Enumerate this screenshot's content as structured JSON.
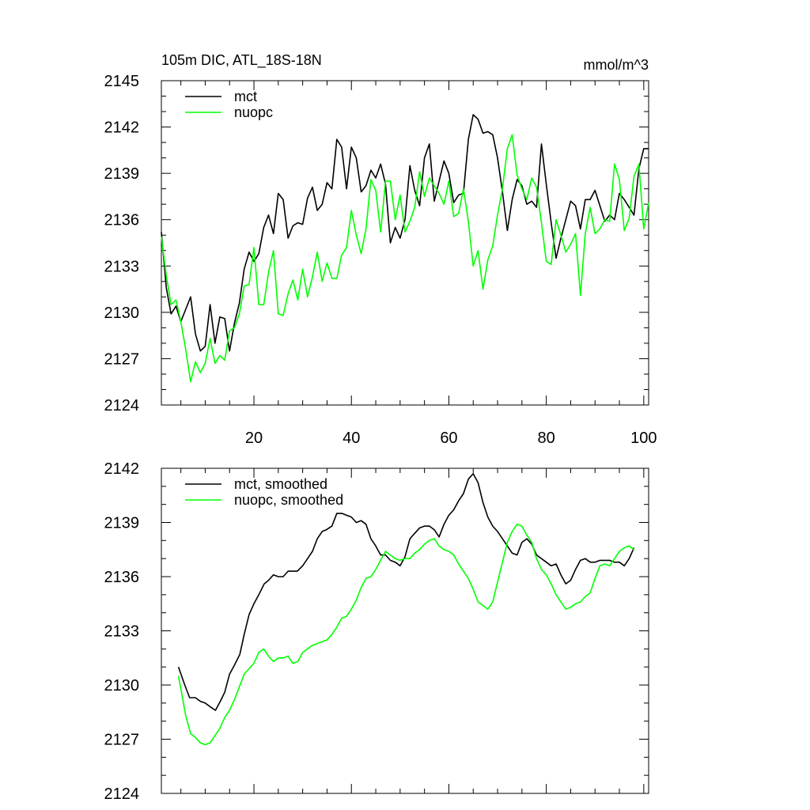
{
  "colors": {
    "mct": "#000000",
    "nuopc": "#00ff00"
  },
  "chart_data": [
    {
      "type": "line",
      "title_left": "105m DIC, ATL_18S-18N",
      "title_right": "mmol/m^3",
      "xlim": [
        1,
        101
      ],
      "ylim": [
        2124,
        2145
      ],
      "yticks": [
        2124,
        2127,
        2130,
        2133,
        2136,
        2139,
        2142,
        2145
      ],
      "xtick_labels": [
        "20",
        "40",
        "60",
        "80",
        "100"
      ],
      "xtick_values": [
        20,
        40,
        60,
        80,
        100
      ],
      "legend": "top-left",
      "series": [
        {
          "name": "mct",
          "color": "#000000",
          "x": [
            1,
            2,
            3,
            4,
            5,
            6,
            7,
            8,
            9,
            10,
            11,
            12,
            13,
            14,
            15,
            16,
            17,
            18,
            19,
            20,
            21,
            22,
            23,
            24,
            25,
            26,
            27,
            28,
            29,
            30,
            31,
            32,
            33,
            34,
            35,
            36,
            37,
            38,
            39,
            40,
            41,
            42,
            43,
            44,
            45,
            46,
            47,
            48,
            49,
            50,
            51,
            52,
            53,
            54,
            55,
            56,
            57,
            58,
            59,
            60,
            61,
            62,
            63,
            64,
            65,
            66,
            67,
            68,
            69,
            70,
            71,
            72,
            73,
            74,
            75,
            76,
            77,
            78,
            79,
            80,
            81,
            82,
            83,
            84,
            85,
            86,
            87,
            88,
            89,
            90,
            91,
            92,
            93,
            94,
            95,
            96,
            97,
            98,
            99,
            100,
            101
          ],
          "values": [
            2135.2,
            2131.6,
            2129.9,
            2130.4,
            2129.4,
            2130.2,
            2131.0,
            2128.6,
            2127.5,
            2127.8,
            2130.5,
            2128.0,
            2129.7,
            2129.6,
            2127.5,
            2129.3,
            2130.6,
            2132.8,
            2133.9,
            2133.3,
            2133.8,
            2135.5,
            2136.3,
            2135.1,
            2137.7,
            2137.3,
            2134.8,
            2135.6,
            2135.8,
            2135.7,
            2137.4,
            2138.1,
            2136.6,
            2137.0,
            2138.4,
            2138.0,
            2141.2,
            2140.7,
            2138.0,
            2140.7,
            2140.0,
            2137.8,
            2138.2,
            2139.2,
            2138.7,
            2139.6,
            2138.3,
            2134.5,
            2135.5,
            2134.8,
            2136.0,
            2139.5,
            2137.9,
            2136.9,
            2140.0,
            2140.9,
            2137.2,
            2138.5,
            2139.8,
            2139.0,
            2137.1,
            2137.6,
            2137.7,
            2141.2,
            2142.8,
            2142.5,
            2141.6,
            2141.7,
            2141.5,
            2140.0,
            2137.8,
            2135.3,
            2137.3,
            2138.6,
            2138.2,
            2137.0,
            2137.2,
            2136.8,
            2140.9,
            2138.3,
            2135.8,
            2133.5,
            2134.8,
            2136.0,
            2137.2,
            2136.9,
            2135.4,
            2137.3,
            2137.3,
            2137.9,
            2136.9,
            2135.9,
            2136.3,
            2136.0,
            2137.7,
            2137.3,
            2136.8,
            2136.3,
            2139.3,
            2140.6,
            2140.6
          ]
        },
        {
          "name": "nuopc",
          "color": "#00ff00",
          "x": [
            1,
            2,
            3,
            4,
            5,
            6,
            7,
            8,
            9,
            10,
            11,
            12,
            13,
            14,
            15,
            16,
            17,
            18,
            19,
            20,
            21,
            22,
            23,
            24,
            25,
            26,
            27,
            28,
            29,
            30,
            31,
            32,
            33,
            34,
            35,
            36,
            37,
            38,
            39,
            40,
            41,
            42,
            43,
            44,
            45,
            46,
            47,
            48,
            49,
            50,
            51,
            52,
            53,
            54,
            55,
            56,
            57,
            58,
            59,
            60,
            61,
            62,
            63,
            64,
            65,
            66,
            67,
            68,
            69,
            70,
            71,
            72,
            73,
            74,
            75,
            76,
            77,
            78,
            79,
            80,
            81,
            82,
            83,
            84,
            85,
            86,
            87,
            88,
            89,
            90,
            91,
            92,
            93,
            94,
            95,
            96,
            97,
            98,
            99,
            100,
            101
          ],
          "values": [
            2134.9,
            2132.4,
            2130.5,
            2130.8,
            2129.4,
            2127.6,
            2125.5,
            2126.8,
            2126.1,
            2126.7,
            2128.3,
            2126.7,
            2127.2,
            2126.9,
            2128.8,
            2129.0,
            2129.9,
            2131.7,
            2131.8,
            2134.2,
            2130.5,
            2130.5,
            2132.6,
            2134.0,
            2129.9,
            2129.8,
            2131.2,
            2132.1,
            2130.8,
            2132.8,
            2131.0,
            2132.3,
            2133.9,
            2132.0,
            2133.2,
            2132.2,
            2132.2,
            2133.7,
            2134.2,
            2136.6,
            2135.0,
            2133.8,
            2135.4,
            2138.6,
            2137.9,
            2135.2,
            2138.5,
            2138.5,
            2136.0,
            2137.6,
            2135.2,
            2135.9,
            2136.8,
            2139.1,
            2137.5,
            2138.7,
            2138.2,
            2137.7,
            2137.0,
            2138.5,
            2136.2,
            2136.4,
            2138.0,
            2135.9,
            2133.0,
            2134.0,
            2131.5,
            2133.4,
            2134.3,
            2136.3,
            2138.0,
            2140.6,
            2141.5,
            2138.9,
            2138.0,
            2137.3,
            2138.7,
            2138.1,
            2135.8,
            2133.3,
            2133.1,
            2136.0,
            2135.0,
            2133.9,
            2134.4,
            2135.1,
            2131.1,
            2135.1,
            2136.8,
            2135.1,
            2135.4,
            2136.0,
            2135.9,
            2139.6,
            2138.6,
            2135.3,
            2136.1,
            2138.8,
            2139.6,
            2135.4,
            2137.1
          ]
        }
      ]
    },
    {
      "type": "line",
      "xlim": [
        1,
        101
      ],
      "ylim": [
        2124,
        2142
      ],
      "yticks": [
        2124,
        2127,
        2130,
        2133,
        2136,
        2139,
        2142
      ],
      "xtick_labels": [],
      "xtick_values": [
        20,
        40,
        60,
        80,
        100
      ],
      "legend": "top-left",
      "series": [
        {
          "name": "mct, smoothed",
          "color": "#000000",
          "x": [
            4.5,
            5.8,
            6.8,
            8.0,
            9.0,
            10.0,
            11.0,
            12.1,
            13.1,
            14.0,
            15.0,
            16.0,
            17.1,
            18.0,
            19.0,
            20.0,
            21.0,
            22.1,
            23.0,
            24.0,
            25.0,
            26.0,
            27.0,
            28.0,
            28.9,
            30.0,
            31.0,
            32.0,
            33.0,
            34.0,
            34.9,
            36.0,
            37.0,
            38.1,
            39.0,
            40.0,
            41.0,
            42.0,
            43.0,
            44.0,
            45.0,
            46.0,
            47.0,
            48.0,
            49.0,
            50.0,
            51.0,
            52.0,
            53.0,
            54.0,
            55.0,
            56.0,
            57.0,
            58.0,
            59.0,
            60.0,
            61.0,
            62.0,
            63.0,
            64.0,
            65.0,
            66.0,
            67.0,
            68.0,
            69.0,
            70.0,
            71.0,
            72.0,
            73.0,
            74.0,
            75.0,
            76.0,
            77.0,
            78.0,
            79.0,
            80.0,
            81.0,
            82.0,
            83.0,
            84.0,
            85.0,
            86.0,
            87.0,
            88.0,
            89.0,
            90.0,
            91.0,
            92.0,
            93.0,
            94.0,
            95.0,
            96.0,
            97.0,
            98.0
          ],
          "values": [
            2131.0,
            2130.0,
            2129.3,
            2129.3,
            2129.1,
            2129.0,
            2128.8,
            2128.6,
            2129.1,
            2129.6,
            2130.6,
            2131.1,
            2131.7,
            2132.8,
            2133.9,
            2134.5,
            2135.0,
            2135.6,
            2135.8,
            2136.1,
            2136.0,
            2136.0,
            2136.3,
            2136.3,
            2136.3,
            2136.6,
            2137.0,
            2137.4,
            2138.1,
            2138.5,
            2138.6,
            2138.8,
            2139.5,
            2139.5,
            2139.4,
            2139.3,
            2139.0,
            2139.1,
            2138.9,
            2138.1,
            2137.7,
            2137.2,
            2137.2,
            2136.9,
            2136.8,
            2136.6,
            2137.1,
            2138.1,
            2138.4,
            2138.7,
            2138.8,
            2138.8,
            2138.6,
            2138.2,
            2138.9,
            2139.4,
            2139.7,
            2140.2,
            2140.6,
            2141.4,
            2141.7,
            2141.2,
            2140.1,
            2139.3,
            2138.8,
            2138.5,
            2138.1,
            2137.7,
            2137.3,
            2137.2,
            2137.9,
            2138.1,
            2137.8,
            2137.2,
            2137.0,
            2136.8,
            2136.6,
            2136.7,
            2136.1,
            2135.6,
            2135.8,
            2136.4,
            2136.9,
            2137.0,
            2136.8,
            2136.8,
            2136.9,
            2136.9,
            2136.9,
            2136.8,
            2136.8,
            2136.6,
            2137.0,
            2137.6
          ]
        },
        {
          "name": "nuopc, smoothed",
          "color": "#00ff00",
          "x": [
            4.5,
            5.0,
            6.0,
            7.0,
            8.0,
            9.0,
            10.0,
            11.0,
            12.0,
            13.0,
            14.0,
            15.0,
            16.0,
            17.0,
            18.0,
            19.0,
            20.0,
            21.0,
            22.0,
            23.0,
            24.0,
            25.0,
            26.0,
            27.0,
            28.0,
            29.0,
            30.0,
            31.0,
            32.0,
            33.0,
            34.0,
            35.0,
            36.0,
            37.0,
            38.0,
            39.0,
            40.0,
            41.0,
            42.0,
            43.0,
            44.0,
            45.0,
            46.0,
            47.0,
            48.0,
            49.0,
            50.0,
            51.0,
            52.0,
            53.0,
            54.0,
            55.0,
            56.0,
            57.0,
            58.0,
            59.0,
            60.0,
            61.0,
            62.0,
            63.0,
            64.0,
            65.0,
            66.0,
            67.0,
            68.0,
            69.0,
            70.0,
            71.0,
            72.0,
            73.0,
            74.0,
            75.0,
            76.0,
            77.0,
            78.0,
            79.0,
            80.0,
            81.0,
            82.0,
            83.0,
            84.0,
            85.0,
            86.0,
            87.0,
            88.0,
            89.0,
            90.0,
            91.0,
            92.0,
            93.0,
            94.0,
            95.0,
            96.0,
            97.0,
            98.0
          ],
          "values": [
            2130.5,
            2129.8,
            2128.3,
            2127.3,
            2127.1,
            2126.8,
            2126.7,
            2126.8,
            2127.2,
            2127.6,
            2128.2,
            2128.6,
            2129.2,
            2129.9,
            2130.6,
            2130.9,
            2131.2,
            2131.8,
            2132.0,
            2131.6,
            2131.3,
            2131.5,
            2131.5,
            2131.6,
            2131.2,
            2131.3,
            2131.8,
            2132.0,
            2132.2,
            2132.3,
            2132.4,
            2132.5,
            2132.8,
            2133.2,
            2133.7,
            2133.8,
            2134.2,
            2134.7,
            2135.4,
            2135.9,
            2136.0,
            2136.4,
            2136.9,
            2137.4,
            2137.2,
            2137.0,
            2136.9,
            2137.0,
            2137.0,
            2137.3,
            2137.5,
            2137.8,
            2138.0,
            2138.1,
            2137.7,
            2137.5,
            2137.4,
            2137.2,
            2136.7,
            2136.3,
            2135.9,
            2135.3,
            2134.6,
            2134.4,
            2134.2,
            2134.6,
            2135.7,
            2136.8,
            2137.9,
            2138.5,
            2138.9,
            2138.8,
            2138.3,
            2137.9,
            2137.0,
            2136.4,
            2136.1,
            2135.6,
            2135.0,
            2134.6,
            2134.2,
            2134.3,
            2134.5,
            2134.6,
            2134.9,
            2135.1,
            2135.9,
            2136.6,
            2136.7,
            2136.6,
            2137.0,
            2137.4,
            2137.6,
            2137.7,
            2137.5
          ]
        }
      ]
    }
  ]
}
